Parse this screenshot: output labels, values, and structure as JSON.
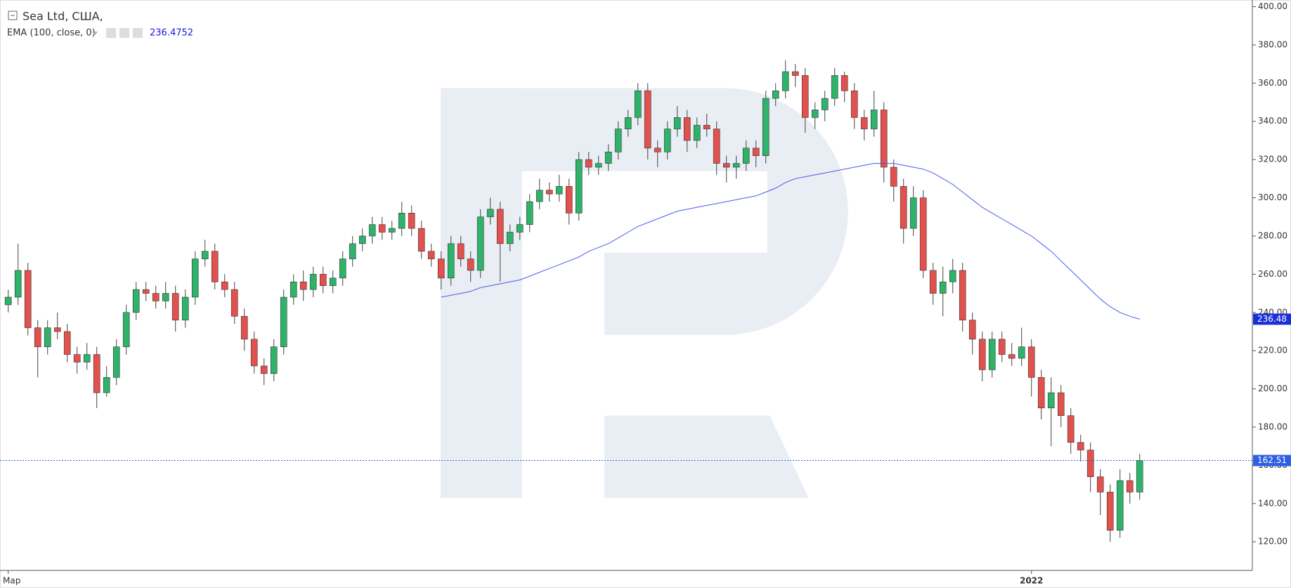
{
  "chart_data": {
    "type": "candlestick",
    "title": "Sea Ltd, США,",
    "up_color": "#2fb36a",
    "down_color": "#e2514e",
    "categories": [
      "Мар",
      null,
      null,
      null,
      null,
      null,
      null,
      null,
      null,
      null,
      null,
      null,
      null,
      null,
      null,
      null,
      null,
      null,
      null,
      null,
      null,
      null,
      null,
      null,
      null,
      null,
      null,
      null,
      null,
      null,
      null,
      null,
      null,
      null,
      null,
      null,
      null,
      null,
      null,
      null,
      null,
      null,
      null,
      null,
      null,
      null,
      null,
      null,
      null,
      null,
      null,
      null,
      null,
      null,
      null,
      null,
      null,
      null,
      null,
      null,
      null,
      null,
      null,
      null,
      null,
      null,
      null,
      null,
      null,
      null,
      null,
      null,
      null,
      null,
      null,
      null,
      null,
      null,
      null,
      null,
      null,
      null,
      null,
      null,
      null,
      null,
      null,
      null,
      null,
      null,
      null,
      null,
      null,
      null,
      null,
      null,
      null,
      null,
      null,
      null,
      null,
      null,
      null,
      null,
      "2022",
      null,
      null,
      null,
      null,
      null,
      null,
      null,
      null,
      null,
      null,
      null
    ],
    "open": [
      244,
      248,
      262,
      232,
      222,
      232,
      230,
      218,
      214,
      218,
      198,
      206,
      222,
      240,
      252,
      250,
      246,
      250,
      236,
      248,
      268,
      272,
      256,
      252,
      238,
      226,
      212,
      208,
      222,
      248,
      256,
      252,
      260,
      254,
      258,
      268,
      276,
      280,
      286,
      282,
      284,
      292,
      284,
      272,
      268,
      258,
      276,
      268,
      262,
      290,
      294,
      276,
      282,
      286,
      298,
      304,
      302,
      306,
      292,
      320,
      316,
      318,
      324,
      336,
      342,
      356,
      326,
      324,
      336,
      342,
      330,
      338,
      336,
      318,
      316,
      318,
      326,
      322,
      352,
      356,
      366,
      364,
      342,
      346,
      352,
      364,
      356,
      342,
      336,
      346,
      316,
      306,
      284,
      300,
      262,
      250,
      256,
      262,
      236,
      226,
      210,
      226,
      218,
      216,
      222,
      206,
      190,
      198,
      186,
      172,
      168,
      154,
      146,
      126,
      152,
      146
    ],
    "high": [
      252,
      276,
      266,
      236,
      236,
      240,
      234,
      222,
      224,
      222,
      212,
      226,
      244,
      256,
      256,
      254,
      256,
      254,
      252,
      272,
      278,
      276,
      260,
      256,
      242,
      230,
      216,
      226,
      252,
      260,
      262,
      264,
      264,
      262,
      272,
      280,
      284,
      290,
      290,
      288,
      298,
      296,
      288,
      276,
      272,
      280,
      280,
      272,
      294,
      300,
      298,
      286,
      290,
      302,
      310,
      308,
      312,
      310,
      324,
      324,
      322,
      328,
      340,
      346,
      360,
      360,
      330,
      340,
      348,
      346,
      342,
      344,
      340,
      322,
      322,
      330,
      330,
      356,
      360,
      372,
      370,
      368,
      350,
      356,
      368,
      366,
      360,
      346,
      356,
      350,
      320,
      310,
      306,
      304,
      266,
      264,
      268,
      266,
      240,
      230,
      230,
      230,
      224,
      232,
      226,
      210,
      206,
      202,
      190,
      176,
      172,
      158,
      150,
      158,
      156,
      166
    ],
    "low": [
      240,
      244,
      228,
      206,
      218,
      226,
      214,
      208,
      210,
      190,
      196,
      202,
      218,
      236,
      246,
      242,
      242,
      230,
      232,
      244,
      264,
      252,
      248,
      234,
      220,
      208,
      202,
      204,
      218,
      244,
      246,
      248,
      250,
      250,
      254,
      264,
      272,
      276,
      278,
      278,
      280,
      280,
      268,
      264,
      252,
      254,
      264,
      256,
      258,
      286,
      256,
      272,
      278,
      282,
      294,
      298,
      298,
      286,
      288,
      312,
      312,
      314,
      320,
      332,
      338,
      320,
      316,
      320,
      332,
      324,
      326,
      332,
      312,
      308,
      310,
      314,
      316,
      318,
      348,
      352,
      358,
      334,
      336,
      340,
      348,
      350,
      336,
      330,
      332,
      308,
      298,
      276,
      280,
      258,
      244,
      238,
      250,
      230,
      218,
      204,
      206,
      214,
      212,
      212,
      196,
      184,
      170,
      180,
      166,
      162,
      146,
      134,
      120,
      122,
      140,
      142
    ],
    "close": [
      248,
      262,
      232,
      222,
      232,
      230,
      218,
      214,
      218,
      198,
      206,
      222,
      240,
      252,
      250,
      246,
      250,
      236,
      248,
      268,
      272,
      256,
      252,
      238,
      226,
      212,
      208,
      222,
      248,
      256,
      252,
      260,
      254,
      258,
      268,
      276,
      280,
      286,
      282,
      284,
      292,
      284,
      272,
      268,
      258,
      276,
      268,
      262,
      290,
      294,
      276,
      282,
      286,
      298,
      304,
      302,
      306,
      292,
      320,
      316,
      318,
      324,
      336,
      342,
      356,
      326,
      324,
      336,
      342,
      330,
      338,
      336,
      318,
      316,
      318,
      326,
      322,
      352,
      356,
      366,
      364,
      342,
      346,
      352,
      364,
      356,
      342,
      336,
      346,
      316,
      306,
      284,
      300,
      262,
      250,
      256,
      262,
      236,
      226,
      210,
      226,
      218,
      216,
      222,
      206,
      190,
      198,
      186,
      172,
      168,
      154,
      146,
      126,
      152,
      146,
      162.51
    ],
    "last_price_label": "162.51",
    "ema": {
      "name": "EMA (100, close, 0)",
      "color": "#4a5be8",
      "value_label": "236.4752",
      "axis_label": "236.48",
      "values": [
        null,
        null,
        null,
        null,
        null,
        null,
        null,
        null,
        null,
        null,
        null,
        null,
        null,
        null,
        null,
        null,
        null,
        null,
        null,
        null,
        null,
        null,
        null,
        null,
        null,
        null,
        null,
        null,
        null,
        null,
        null,
        null,
        null,
        null,
        null,
        null,
        null,
        null,
        null,
        null,
        null,
        null,
        null,
        null,
        248,
        249,
        250,
        251,
        253,
        254,
        255,
        256,
        257,
        259,
        261,
        263,
        265,
        267,
        269,
        272,
        274,
        276,
        279,
        282,
        285,
        287,
        289,
        291,
        293,
        294,
        295,
        296,
        297,
        298,
        299,
        300,
        301,
        303,
        305,
        308,
        310,
        311,
        312,
        313,
        314,
        315,
        316,
        317,
        318,
        318,
        318,
        317,
        316,
        315,
        313,
        310,
        307,
        303,
        299,
        295,
        292,
        289,
        286,
        283,
        280,
        276,
        272,
        267,
        262,
        257,
        252,
        247,
        243,
        240,
        238,
        236.4752
      ]
    },
    "ylim": [
      105,
      403.5
    ],
    "yticks": [
      {
        "value": 120,
        "label": "120.00"
      },
      {
        "value": 140,
        "label": "140.00"
      },
      {
        "value": 160,
        "label": "160.00"
      },
      {
        "value": 180,
        "label": "180.00"
      },
      {
        "value": 200,
        "label": "200.00"
      },
      {
        "value": 220,
        "label": "220.00"
      },
      {
        "value": 240,
        "label": "240.00"
      },
      {
        "value": 260,
        "label": "260.00"
      },
      {
        "value": 280,
        "label": "280.00"
      },
      {
        "value": 300,
        "label": "300.00"
      },
      {
        "value": 320,
        "label": "320.00"
      },
      {
        "value": 340,
        "label": "340.00"
      },
      {
        "value": 360,
        "label": "360.00"
      },
      {
        "value": 380,
        "label": "380.00"
      },
      {
        "value": 400,
        "label": "400.00"
      }
    ],
    "grid": false
  }
}
